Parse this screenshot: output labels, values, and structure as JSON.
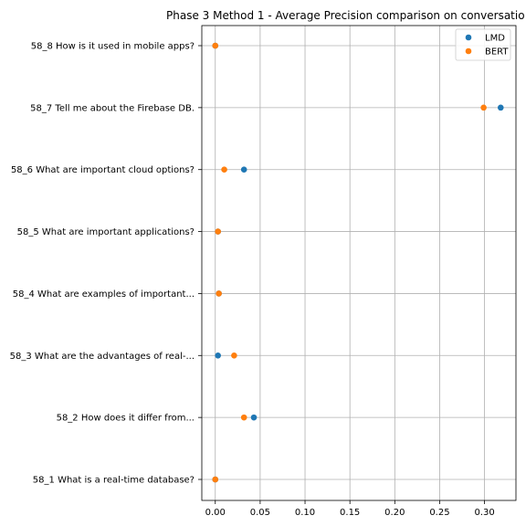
{
  "chart_data": {
    "type": "scatter",
    "title": "Phase 3 Method 1 - Average Precision comparison on conversatio",
    "xlabel": "",
    "ylabel": "",
    "categories": [
      "58_1 What is a real-time database?",
      "58_2 How does it differ from...",
      "58_3 What are the advantages of real-...",
      "58_4 What are examples of important...",
      "58_5 What are important applications?",
      "58_6 What are important cloud options?",
      "58_7 Tell me about the Firebase DB.",
      "58_8 How is it used in mobile apps?"
    ],
    "xlim": [
      -0.015,
      0.335
    ],
    "xticks": [
      "0.00",
      "0.05",
      "0.10",
      "0.15",
      "0.20",
      "0.25",
      "0.30"
    ],
    "xtick_values": [
      0,
      0.05,
      0.1,
      0.15,
      0.2,
      0.25,
      0.3
    ],
    "grid": true,
    "legend_position": "top-right",
    "series": [
      {
        "name": "LMD",
        "color": "#1f77b4",
        "values": [
          0.0,
          0.043,
          0.003,
          0.004,
          0.003,
          0.032,
          0.318,
          0.0
        ]
      },
      {
        "name": "BERT",
        "color": "#ff7f0e",
        "values": [
          0.0,
          0.032,
          0.021,
          0.004,
          0.003,
          0.01,
          0.299,
          0.0
        ]
      }
    ]
  }
}
